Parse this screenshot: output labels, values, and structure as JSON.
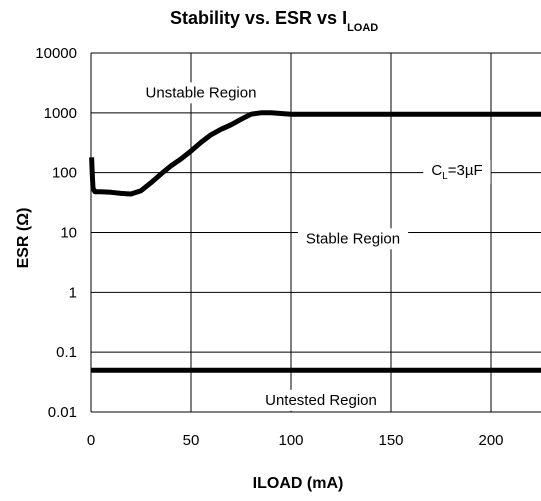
{
  "chart_data": {
    "type": "line",
    "title": {
      "text": "Stability vs. ESR vs I",
      "subscript": "LOAD"
    },
    "xlabel": "ILOAD (mA)",
    "ylabel": "ESR (Ω)",
    "xlim": [
      0,
      225
    ],
    "ylim": [
      0.01,
      10000
    ],
    "yscale": "log",
    "x_ticks": [
      0,
      50,
      100,
      150,
      200
    ],
    "x_tick_labels": [
      "0",
      "50",
      "100",
      "150",
      "200"
    ],
    "y_ticks": [
      0.01,
      0.1,
      1,
      10,
      100,
      1000,
      10000
    ],
    "y_tick_labels": [
      "0.01",
      "0.1",
      "1",
      "10",
      "100",
      "1000",
      "10000"
    ],
    "grid": true,
    "colors": {
      "line": "#000000",
      "grid": "#000000",
      "background": "#ffffff"
    },
    "series": [
      {
        "x": [
          0.3,
          0.6,
          1,
          2,
          5,
          10,
          15,
          20,
          25,
          30,
          35,
          40,
          45,
          50,
          55,
          60,
          65,
          70,
          75,
          80,
          85,
          90,
          100,
          150,
          200,
          225
        ],
        "y": [
          180,
          100,
          55,
          48,
          48,
          47,
          45,
          44,
          50,
          68,
          95,
          130,
          170,
          230,
          320,
          430,
          530,
          630,
          780,
          950,
          1000,
          1000,
          950,
          950,
          950,
          950
        ]
      },
      {
        "x": [
          0,
          225
        ],
        "y": [
          0.05,
          0.05
        ]
      }
    ],
    "annotations": [
      {
        "id": "unstable",
        "text": "Unstable Region",
        "x": 55,
        "y": 2200
      },
      {
        "id": "stable",
        "text": "Stable Region",
        "x": 131,
        "y": 8
      },
      {
        "id": "untested",
        "text": "Untested Region",
        "x": 115,
        "y": 0.016
      },
      {
        "id": "cl",
        "text_pre": "C",
        "text_sub": "L",
        "text_post": "=3µF",
        "x": 183,
        "y": 110
      }
    ]
  }
}
